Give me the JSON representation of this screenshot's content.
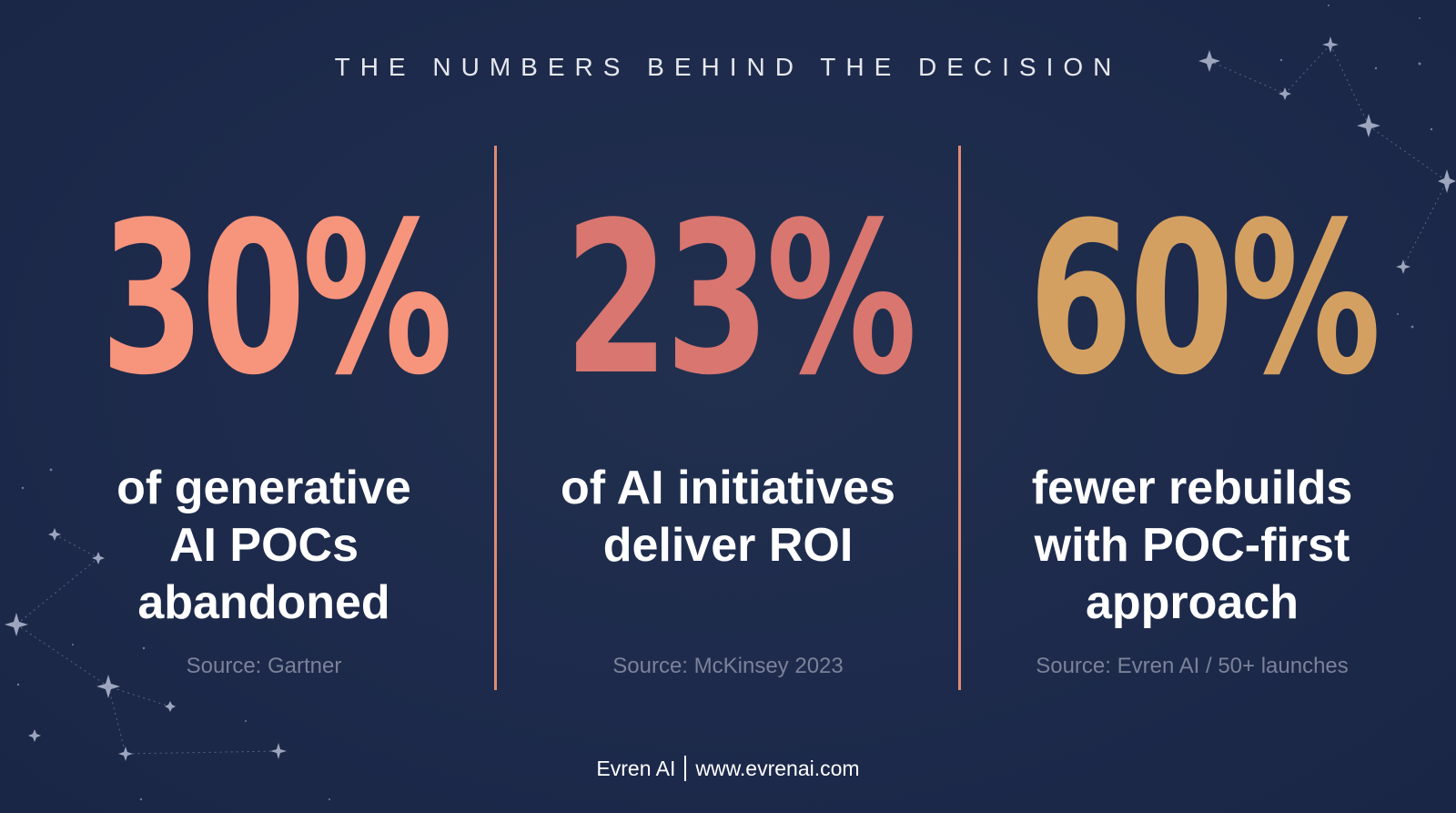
{
  "headline": "THE NUMBERS BEHIND THE DECISION",
  "stats": [
    {
      "value": "30%",
      "color": "#f7947c",
      "description": [
        "of generative",
        "AI POCs",
        "abandoned"
      ],
      "source": "Source: Gartner"
    },
    {
      "value": "23%",
      "color": "#d9766f",
      "description": [
        "of AI initiatives",
        "deliver ROI"
      ],
      "source": "Source: McKinsey 2023"
    },
    {
      "value": "60%",
      "color": "#d4a062",
      "description": [
        "fewer rebuilds",
        "with POC-first",
        "approach"
      ],
      "source": "Source: Evren AI / 50+ launches"
    }
  ],
  "footer": {
    "brand": "Evren AI",
    "website": "www.evrenai.com"
  },
  "colors": {
    "background": "#1d2a4b",
    "divider": "#e08a74",
    "source_text": "#7b8299"
  }
}
